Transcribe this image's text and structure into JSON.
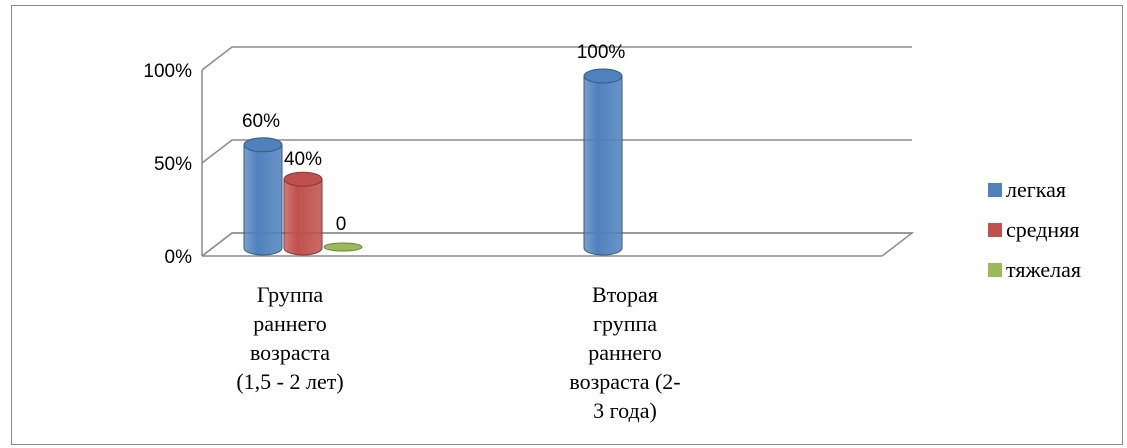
{
  "chart_data": {
    "type": "bar",
    "categories": [
      "Группа раннего возраста (1,5 - 2 лет)",
      "Вторая группа раннего возраста (2-3 года)"
    ],
    "series": [
      {
        "name": "легкая",
        "color": "#4F81BD",
        "values": [
          60,
          100
        ],
        "labels": [
          "60%",
          "100%"
        ]
      },
      {
        "name": "средняя",
        "color": "#C0504D",
        "values": [
          40,
          null
        ],
        "labels": [
          "40%",
          ""
        ]
      },
      {
        "name": "тяжелая",
        "color": "#9BBB59",
        "values": [
          0,
          null
        ],
        "labels": [
          "0",
          ""
        ]
      }
    ],
    "yticks": [
      "0%",
      "50%",
      "100%"
    ],
    "ylim": [
      0,
      100
    ],
    "grid": true,
    "legend_position": "right"
  },
  "categories_display": [
    [
      "Группа",
      "раннего",
      "возраста",
      "(1,5 - 2 лет)"
    ],
    [
      "Вторая",
      "группа",
      "раннего",
      "возраста (2-",
      "3 года)"
    ]
  ]
}
